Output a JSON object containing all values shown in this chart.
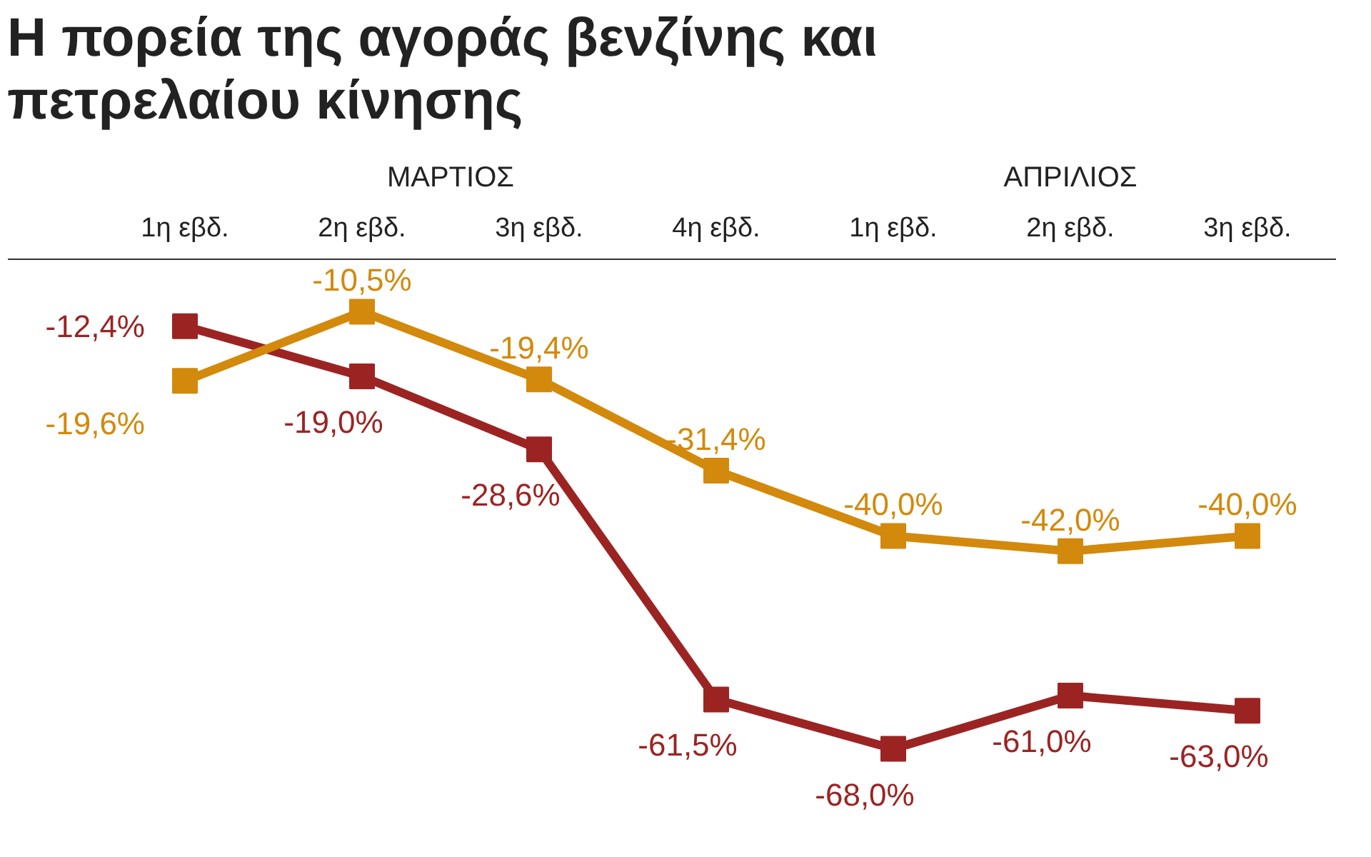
{
  "chart_data": {
    "type": "line",
    "title": "Η πορεία της αγοράς βενζίνης και πετρελαίου κίνησης",
    "categories": [
      "1η εβδ.",
      "2η εβδ.",
      "3η εβδ.",
      "4η εβδ.",
      "1η εβδ.",
      "2η εβδ.",
      "3η εβδ."
    ],
    "annotations": [
      "ΜΑΡΤΙΟΣ",
      "ΑΠΡΙΛΙΟΣ"
    ],
    "series": [
      {
        "color": "#9b2423",
        "values": [
          -12.4,
          -19.0,
          -28.6,
          -61.5,
          -68.0,
          -61.0,
          -63.0
        ],
        "value_labels": [
          "-12,4%",
          "-19,0%",
          "-28,6%",
          "-61,5%",
          "-68,0%",
          "-61,0%",
          "-63,0%"
        ]
      },
      {
        "color": "#d3890c",
        "values": [
          -19.6,
          -10.5,
          -19.4,
          -31.4,
          -40.0,
          -42.0,
          -40.0
        ],
        "value_labels": [
          "-19,6%",
          "-10,5%",
          "-19,4%",
          "-31,4%",
          "-40,0%",
          "-42,0%",
          "-40,0%"
        ]
      }
    ],
    "marker": "square",
    "line_style": "solid",
    "grid": false,
    "tick_labels": "x"
  }
}
